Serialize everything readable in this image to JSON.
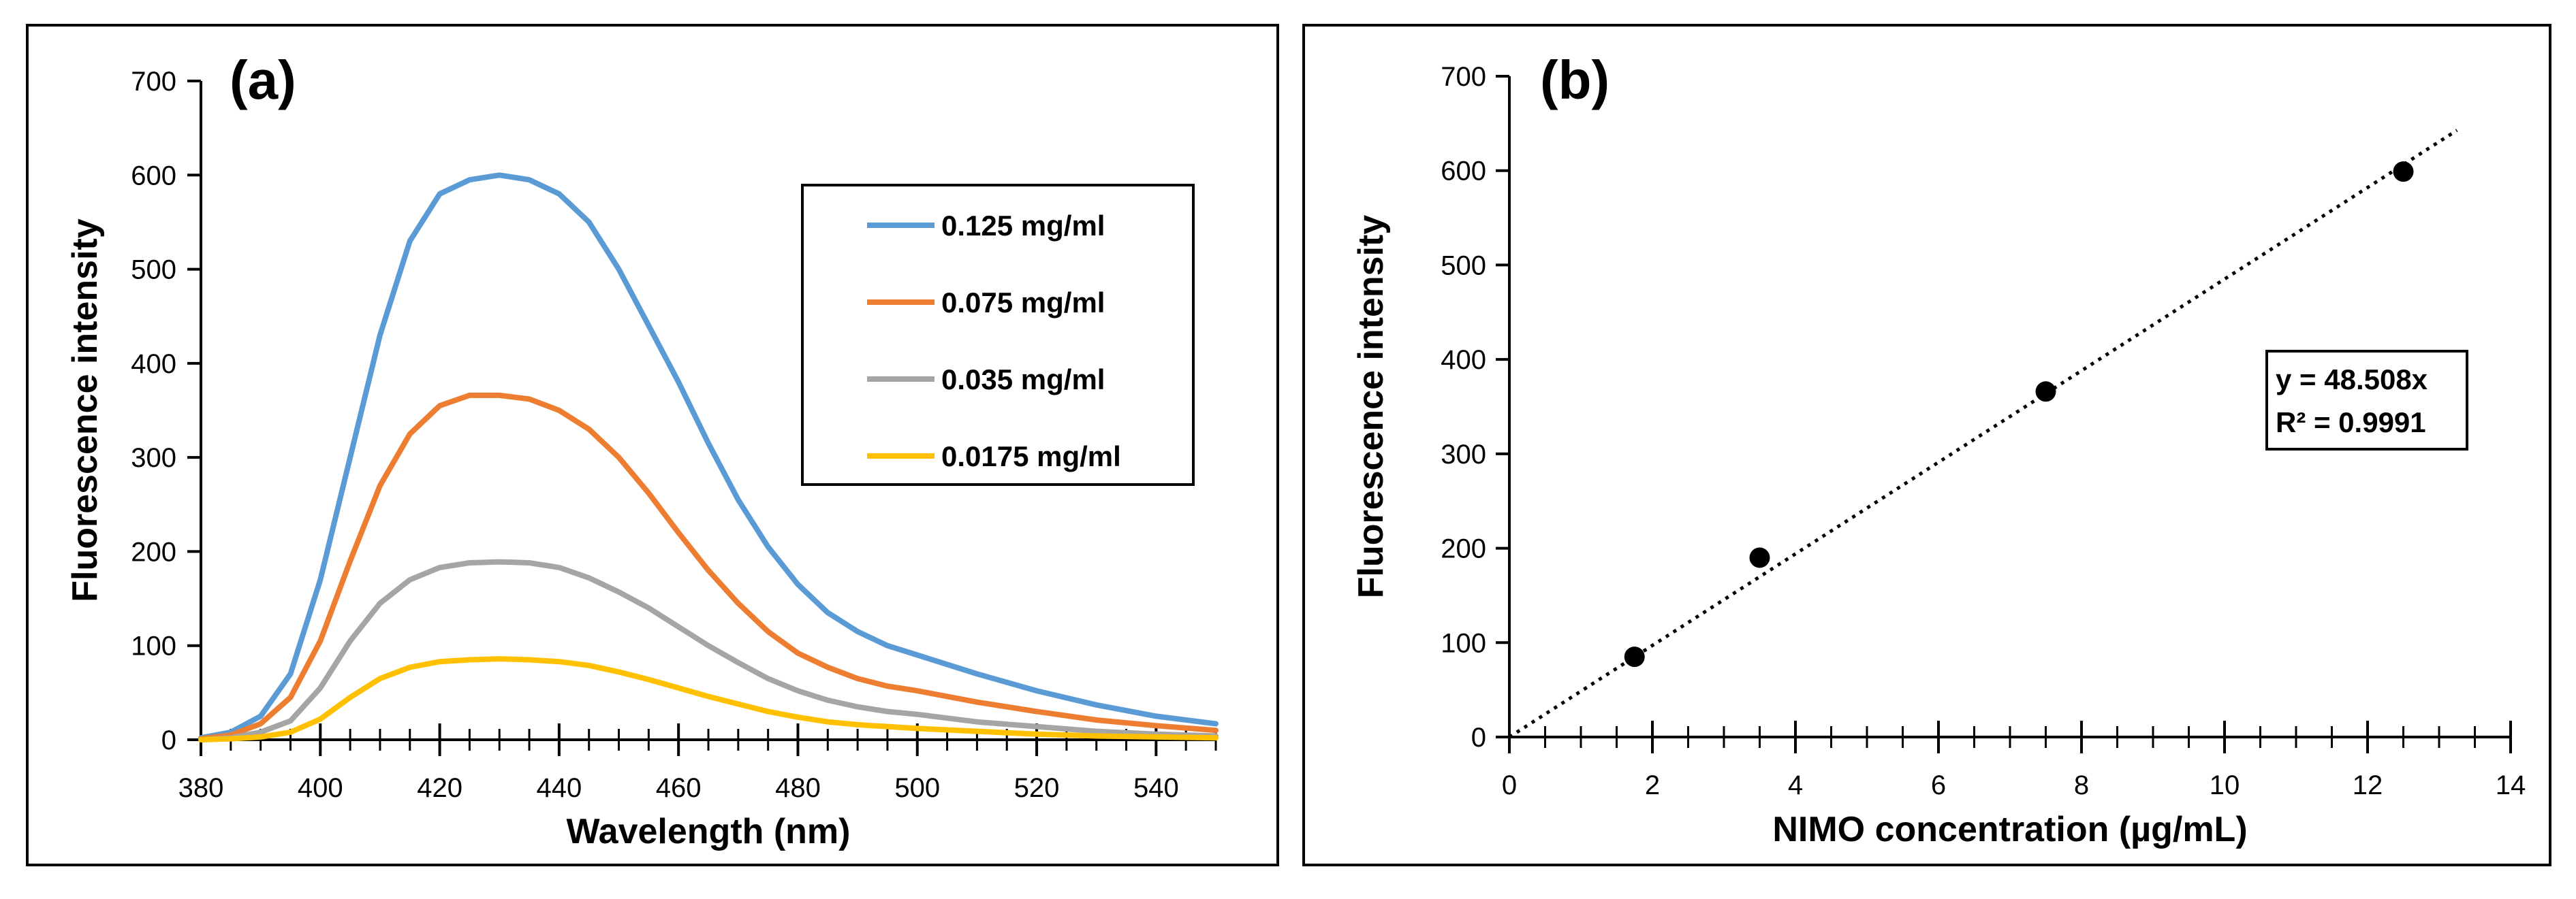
{
  "chart_data": [
    {
      "type": "line",
      "panel_label": "(a)",
      "xlabel": "Wavelength (nm)",
      "ylabel": "Fluorescence intensity",
      "xlim": [
        380,
        550
      ],
      "ylim": [
        0,
        700
      ],
      "xticks": [
        380,
        400,
        420,
        440,
        460,
        480,
        500,
        520,
        540
      ],
      "yticks": [
        0,
        100,
        200,
        300,
        400,
        500,
        600,
        700
      ],
      "legend_position": "top-right",
      "x": [
        380,
        385,
        390,
        395,
        400,
        405,
        410,
        415,
        420,
        425,
        430,
        435,
        440,
        445,
        450,
        455,
        460,
        465,
        470,
        475,
        480,
        485,
        490,
        495,
        500,
        510,
        520,
        530,
        540,
        550
      ],
      "series": [
        {
          "name": "0.125 mg/ml",
          "color": "#5b9bd5",
          "values": [
            2,
            8,
            25,
            70,
            170,
            300,
            430,
            530,
            580,
            595,
            600,
            595,
            580,
            550,
            500,
            440,
            380,
            315,
            255,
            205,
            165,
            135,
            115,
            100,
            90,
            70,
            52,
            37,
            25,
            17
          ]
        },
        {
          "name": "0.075 mg/ml",
          "color": "#ed7d31",
          "values": [
            1,
            5,
            17,
            45,
            105,
            190,
            270,
            325,
            355,
            366,
            366,
            362,
            350,
            330,
            300,
            262,
            220,
            180,
            145,
            115,
            92,
            77,
            65,
            57,
            52,
            40,
            30,
            21,
            15,
            10
          ]
        },
        {
          "name": "0.035 mg/ml",
          "color": "#a5a5a5",
          "values": [
            0,
            2,
            8,
            20,
            55,
            105,
            145,
            170,
            183,
            188,
            189,
            188,
            183,
            172,
            157,
            140,
            120,
            100,
            82,
            65,
            52,
            42,
            35,
            30,
            27,
            19,
            14,
            9,
            6,
            4
          ]
        },
        {
          "name": "0.0175 mg/ml",
          "color": "#ffc000",
          "values": [
            0,
            1,
            3,
            8,
            22,
            45,
            65,
            77,
            83,
            85,
            86,
            85,
            83,
            79,
            72,
            64,
            55,
            46,
            38,
            30,
            24,
            19,
            16,
            14,
            12,
            9,
            6,
            4,
            3,
            2
          ]
        }
      ]
    },
    {
      "type": "scatter",
      "panel_label": "(b)",
      "xlabel": "NIMO concentration (µg/mL)",
      "ylabel": "Fluorescence intensity",
      "xlim": [
        0,
        14
      ],
      "ylim": [
        0,
        700
      ],
      "xticks": [
        0,
        2,
        4,
        6,
        8,
        10,
        12,
        14
      ],
      "yticks": [
        0,
        100,
        200,
        300,
        400,
        500,
        600,
        700
      ],
      "points": [
        {
          "x": 1.75,
          "y": 85
        },
        {
          "x": 3.5,
          "y": 190
        },
        {
          "x": 7.5,
          "y": 366
        },
        {
          "x": 12.5,
          "y": 599
        }
      ],
      "trendline": {
        "style": "dotted",
        "slope": 48.508,
        "x_range": [
          0,
          13.25
        ]
      },
      "annotation": {
        "equation": "y = 48.508x",
        "r_squared": "R² = 0.9991"
      }
    }
  ]
}
